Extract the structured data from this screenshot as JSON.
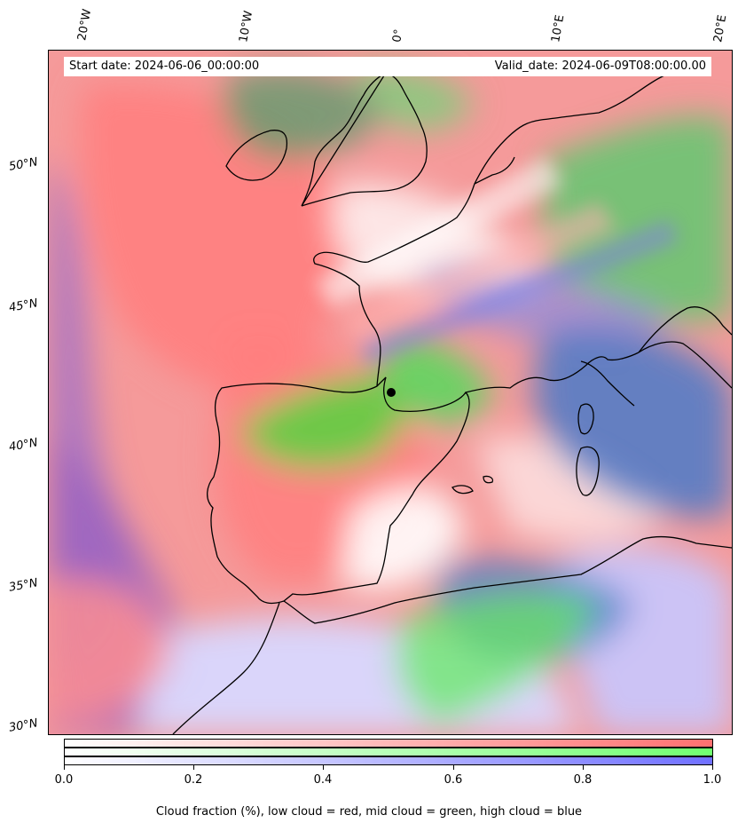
{
  "map": {
    "start_label": "Start date: 2024-06-06_00:00:00",
    "valid_label": "Valid_date: 2024-06-09T08:00:00.00",
    "lon_labels": [
      "20°W",
      "10°W",
      "0°",
      "10°E",
      "20°E"
    ],
    "lat_labels": [
      "50°N",
      "45°N",
      "40°N",
      "35°N",
      "30°N"
    ],
    "layers": {
      "low_cloud": "#ff7f7f",
      "mid_cloud": "#7fff7f",
      "high_cloud": "#7f7fff",
      "coastline": "#000000"
    }
  },
  "colorbar": {
    "ticks": [
      "0.0",
      "0.2",
      "0.4",
      "0.6",
      "0.8",
      "1.0"
    ],
    "caption": "Cloud fraction (%), low cloud = red, mid cloud = green, high cloud = blue",
    "bands": [
      {
        "name": "low",
        "color": "#ff7070"
      },
      {
        "name": "mid",
        "color": "#70ff70"
      },
      {
        "name": "high",
        "color": "#7070ff"
      }
    ]
  }
}
